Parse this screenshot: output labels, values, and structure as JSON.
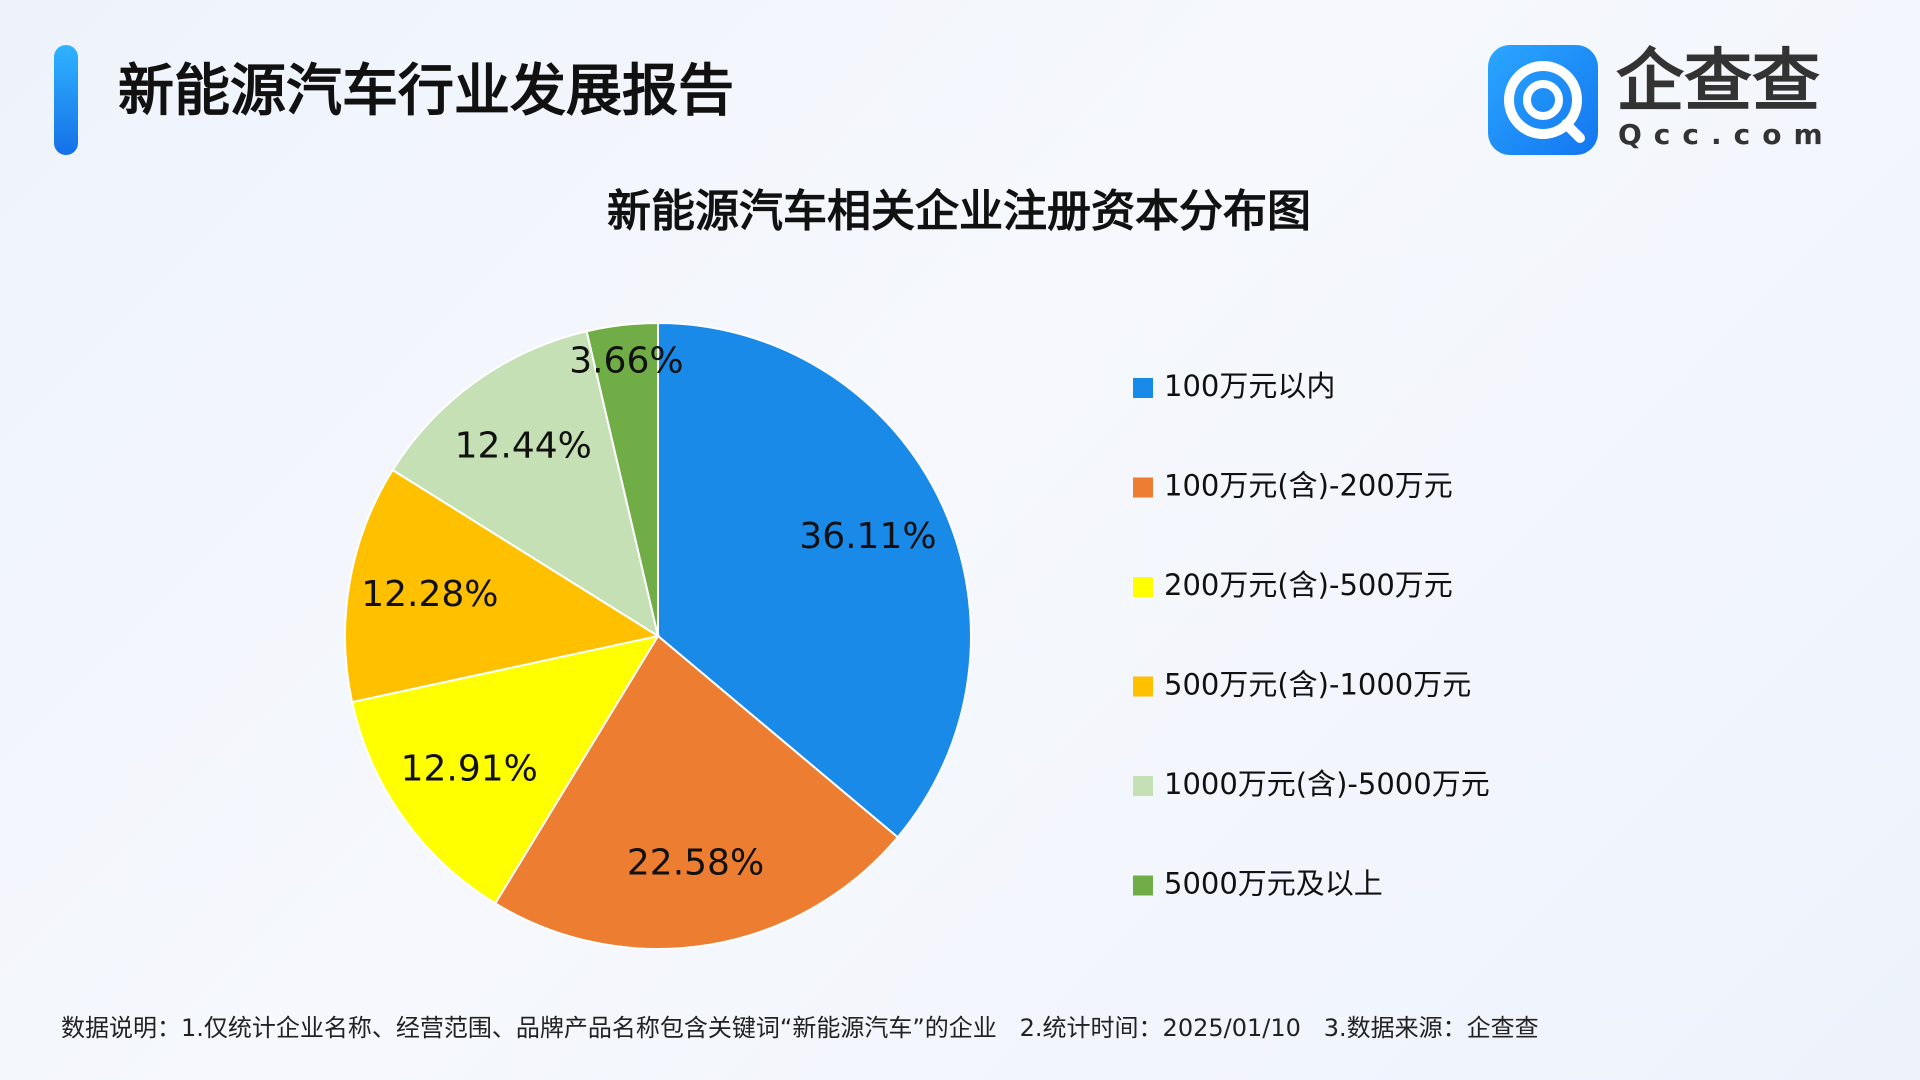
{
  "header": {
    "title": "新能源汽车行业发展报告"
  },
  "logo": {
    "name": "企查查",
    "domain": "Qcc.com"
  },
  "chart_data": {
    "type": "pie",
    "title": "新能源汽车相关企业注册资本分布图",
    "categories": [
      "100万元以内",
      "100万元(含)-200万元",
      "200万元(含)-500万元",
      "500万元(含)-1000万元",
      "1000万元(含)-5000万元",
      "5000万元及以上"
    ],
    "values": [
      36.11,
      22.58,
      12.91,
      12.28,
      12.44,
      3.66
    ],
    "value_labels": [
      "36.11%",
      "22.58%",
      "12.91%",
      "12.28%",
      "12.44%",
      "3.66%"
    ],
    "colors": [
      "#1a8ae8",
      "#ed7d31",
      "#ffff00",
      "#ffc000",
      "#c5e0b4",
      "#70ad47"
    ],
    "legend": "right"
  },
  "footnote": "数据说明：1.仅统计企业名称、经营范围、品牌产品名称包含关键词“新能源汽车”的企业   2.统计时间：2025/01/10   3.数据来源：企查查"
}
